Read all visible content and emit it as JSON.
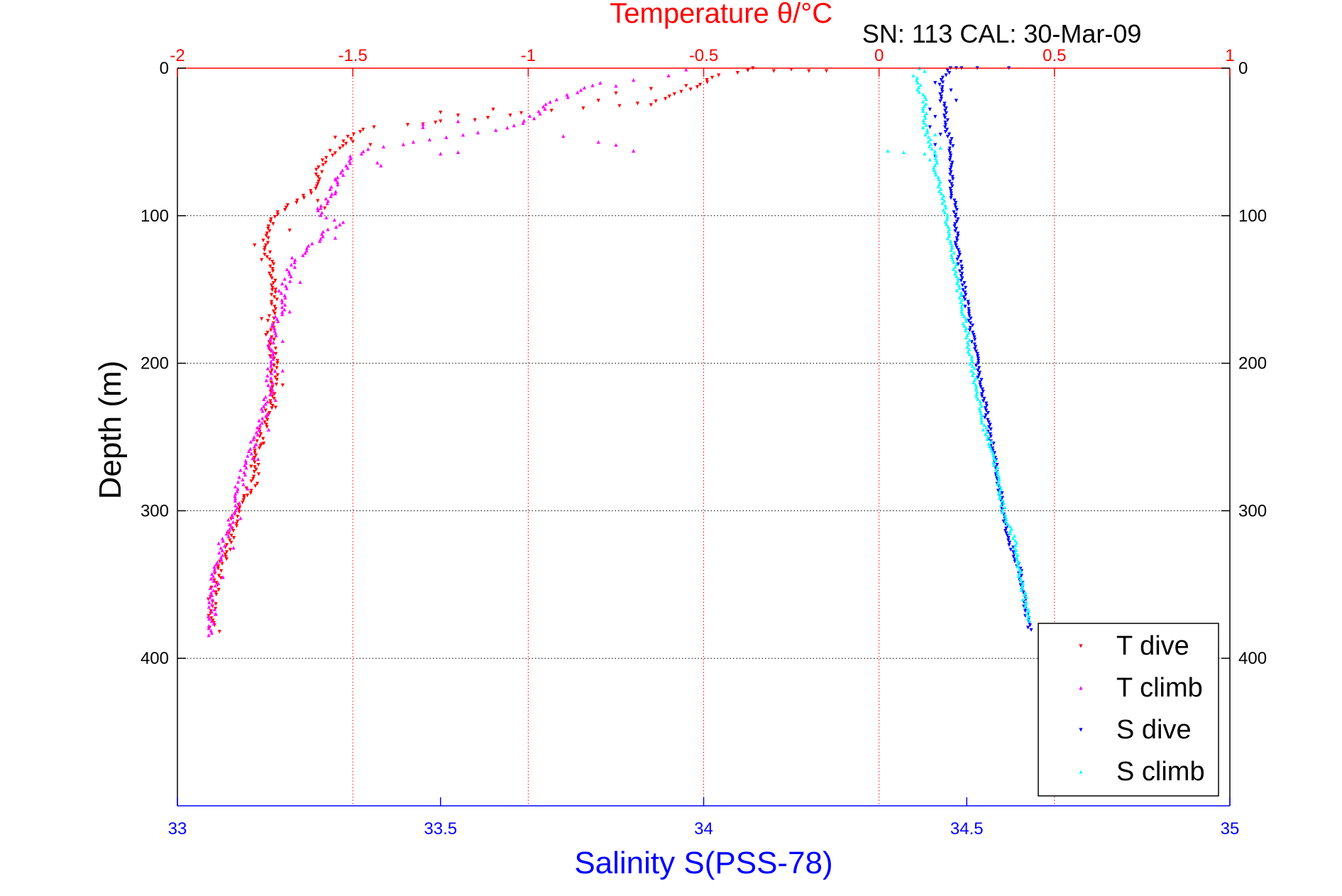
{
  "chart_data": {
    "type": "scatter",
    "title": "Temperature θ/°C",
    "subtitle": "SN: 113  CAL: 30-Mar-09",
    "xlabel": "Salinity S(PSS-78)",
    "ylabel": "Depth (m)",
    "x_top_label": "Temperature θ/°C",
    "x_bottom": {
      "lim": [
        33,
        35
      ],
      "ticks": [
        "33",
        "33.5",
        "34",
        "34.5",
        "35"
      ],
      "color": "#0000ff"
    },
    "x_top": {
      "lim": [
        -2,
        1
      ],
      "ticks": [
        "-2",
        "-1.5",
        "-1",
        "-0.5",
        "0",
        "0.5",
        "1"
      ],
      "color": "#ff0000"
    },
    "y": {
      "lim": [
        0,
        500
      ],
      "reversed": true,
      "ticks": [
        "0",
        "100",
        "200",
        "300",
        "400"
      ]
    },
    "grid": true,
    "legend_position": "bottom-right",
    "colors": {
      "t_dive": "#ff0000",
      "t_climb": "#ff00ff",
      "s_dive": "#0000ff",
      "s_climb": "#00ffff"
    },
    "series": [
      {
        "name": "T dive",
        "axis": "top",
        "marker": "triangle-down",
        "key": "t_dive",
        "profile": [
          [
            0,
            -0.35
          ],
          [
            5,
            -0.45
          ],
          [
            10,
            -0.5
          ],
          [
            15,
            -0.55
          ],
          [
            20,
            -0.6
          ],
          [
            25,
            -0.7
          ],
          [
            30,
            -1.0
          ],
          [
            35,
            -1.15
          ],
          [
            40,
            -1.45
          ],
          [
            45,
            -1.5
          ],
          [
            55,
            -1.55
          ],
          [
            60,
            -1.57
          ],
          [
            70,
            -1.6
          ],
          [
            80,
            -1.6
          ],
          [
            90,
            -1.65
          ],
          [
            95,
            -1.7
          ],
          [
            100,
            -1.72
          ],
          [
            120,
            -1.75
          ],
          [
            140,
            -1.73
          ],
          [
            160,
            -1.72
          ],
          [
            180,
            -1.74
          ],
          [
            200,
            -1.72
          ],
          [
            220,
            -1.73
          ],
          [
            240,
            -1.75
          ],
          [
            260,
            -1.77
          ],
          [
            280,
            -1.78
          ],
          [
            300,
            -1.83
          ],
          [
            320,
            -1.85
          ],
          [
            340,
            -1.88
          ],
          [
            360,
            -1.9
          ],
          [
            380,
            -1.9
          ]
        ],
        "extra": [
          [
            2,
            -0.3
          ],
          [
            2,
            -0.2
          ],
          [
            2,
            -0.15
          ],
          [
            1,
            -0.25
          ],
          [
            12,
            -0.55
          ],
          [
            14,
            -0.65
          ],
          [
            17,
            -0.75
          ],
          [
            22,
            -0.8
          ],
          [
            25,
            -0.65
          ],
          [
            28,
            -1.1
          ],
          [
            30,
            -1.25
          ],
          [
            32,
            -1.2
          ],
          [
            36,
            -1.25
          ],
          [
            38,
            -1.3
          ],
          [
            47,
            -1.55
          ],
          [
            50,
            -1.5
          ],
          [
            52,
            -1.45
          ],
          [
            90,
            -1.6
          ],
          [
            95,
            -1.58
          ],
          [
            110,
            -1.68
          ],
          [
            120,
            -1.78
          ],
          [
            130,
            -1.76
          ],
          [
            150,
            -1.72
          ],
          [
            170,
            -1.76
          ],
          [
            190,
            -1.72
          ],
          [
            215,
            -1.7
          ],
          [
            230,
            -1.72
          ],
          [
            255,
            -1.76
          ],
          [
            270,
            -1.79
          ],
          [
            290,
            -1.81
          ],
          [
            310,
            -1.85
          ],
          [
            382,
            -1.88
          ]
        ]
      },
      {
        "name": "T climb",
        "axis": "top",
        "marker": "triangle-up",
        "key": "t_climb",
        "profile": [
          [
            10,
            -0.8
          ],
          [
            15,
            -0.85
          ],
          [
            20,
            -0.9
          ],
          [
            25,
            -0.95
          ],
          [
            30,
            -0.97
          ],
          [
            35,
            -1.0
          ],
          [
            40,
            -1.05
          ],
          [
            55,
            -1.45
          ],
          [
            60,
            -1.5
          ],
          [
            70,
            -1.53
          ],
          [
            80,
            -1.55
          ],
          [
            90,
            -1.57
          ],
          [
            100,
            -1.6
          ],
          [
            105,
            -1.52
          ],
          [
            110,
            -1.57
          ],
          [
            120,
            -1.62
          ],
          [
            130,
            -1.67
          ],
          [
            140,
            -1.68
          ],
          [
            150,
            -1.7
          ],
          [
            160,
            -1.7
          ],
          [
            180,
            -1.73
          ],
          [
            200,
            -1.73
          ],
          [
            220,
            -1.74
          ],
          [
            240,
            -1.76
          ],
          [
            260,
            -1.79
          ],
          [
            280,
            -1.82
          ],
          [
            300,
            -1.84
          ],
          [
            320,
            -1.87
          ],
          [
            340,
            -1.89
          ],
          [
            360,
            -1.9
          ],
          [
            385,
            -1.9
          ]
        ],
        "extra": [
          [
            1,
            -0.55
          ],
          [
            5,
            -0.6
          ],
          [
            8,
            -0.7
          ],
          [
            12,
            -0.75
          ],
          [
            36,
            -1.2
          ],
          [
            38,
            -1.3
          ],
          [
            40,
            -1.3
          ],
          [
            46,
            -0.9
          ],
          [
            50,
            -0.8
          ],
          [
            52,
            -0.75
          ],
          [
            56,
            -0.7
          ],
          [
            57,
            -1.2
          ],
          [
            58,
            -1.25
          ],
          [
            64,
            -1.43
          ],
          [
            66,
            -1.42
          ],
          [
            75,
            -1.55
          ],
          [
            85,
            -1.55
          ],
          [
            95,
            -1.6
          ],
          [
            115,
            -1.55
          ],
          [
            145,
            -1.65
          ],
          [
            165,
            -1.68
          ],
          [
            185,
            -1.7
          ],
          [
            205,
            -1.7
          ],
          [
            225,
            -1.72
          ],
          [
            245,
            -1.74
          ],
          [
            265,
            -1.77
          ],
          [
            285,
            -1.8
          ],
          [
            305,
            -1.82
          ],
          [
            325,
            -1.84
          ],
          [
            345,
            -1.87
          ],
          [
            370,
            -1.89
          ]
        ]
      },
      {
        "name": "S dive",
        "axis": "bottom",
        "marker": "triangle-down",
        "key": "s_dive",
        "profile": [
          [
            0,
            34.47
          ],
          [
            5,
            34.46
          ],
          [
            10,
            34.45
          ],
          [
            20,
            34.45
          ],
          [
            30,
            34.46
          ],
          [
            40,
            34.46
          ],
          [
            50,
            34.47
          ],
          [
            60,
            34.47
          ],
          [
            80,
            34.47
          ],
          [
            100,
            34.48
          ],
          [
            120,
            34.48
          ],
          [
            140,
            34.49
          ],
          [
            160,
            34.5
          ],
          [
            180,
            34.51
          ],
          [
            200,
            34.52
          ],
          [
            220,
            34.53
          ],
          [
            240,
            34.54
          ],
          [
            260,
            34.55
          ],
          [
            280,
            34.56
          ],
          [
            300,
            34.57
          ],
          [
            320,
            34.58
          ],
          [
            340,
            34.6
          ],
          [
            360,
            34.61
          ],
          [
            382,
            34.62
          ]
        ],
        "extra": [
          [
            0,
            34.48
          ],
          [
            0,
            34.52
          ],
          [
            0,
            34.58
          ],
          [
            0,
            34.49
          ],
          [
            10,
            34.44
          ],
          [
            15,
            34.47
          ],
          [
            22,
            34.48
          ],
          [
            28,
            34.43
          ],
          [
            33,
            34.44
          ],
          [
            40,
            34.43
          ],
          [
            45,
            34.45
          ],
          [
            52,
            34.44
          ],
          [
            60,
            34.44
          ]
        ]
      },
      {
        "name": "S climb",
        "axis": "bottom",
        "marker": "triangle-up",
        "key": "s_climb",
        "profile": [
          [
            5,
            34.4
          ],
          [
            10,
            34.41
          ],
          [
            15,
            34.41
          ],
          [
            20,
            34.42
          ],
          [
            30,
            34.42
          ],
          [
            40,
            34.42
          ],
          [
            50,
            34.43
          ],
          [
            60,
            34.44
          ],
          [
            70,
            34.44
          ],
          [
            80,
            34.45
          ],
          [
            100,
            34.46
          ],
          [
            120,
            34.47
          ],
          [
            140,
            34.48
          ],
          [
            160,
            34.49
          ],
          [
            180,
            34.5
          ],
          [
            200,
            34.51
          ],
          [
            220,
            34.52
          ],
          [
            240,
            34.53
          ],
          [
            260,
            34.55
          ],
          [
            280,
            34.56
          ],
          [
            300,
            34.57
          ],
          [
            320,
            34.59
          ],
          [
            340,
            34.6
          ],
          [
            360,
            34.61
          ],
          [
            375,
            34.62
          ]
        ],
        "extra": [
          [
            0,
            34.41
          ],
          [
            2,
            34.42
          ],
          [
            56,
            34.35
          ],
          [
            57,
            34.38
          ],
          [
            58,
            34.42
          ],
          [
            54,
            34.45
          ],
          [
            62,
            34.43
          ],
          [
            45,
            34.44
          ]
        ]
      }
    ]
  }
}
